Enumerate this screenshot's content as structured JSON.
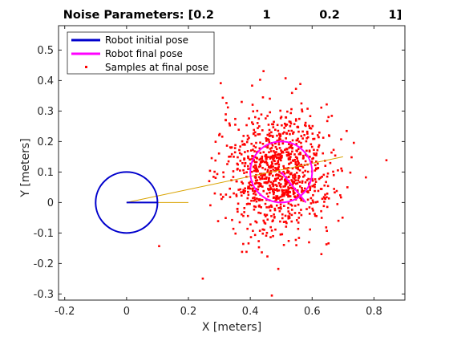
{
  "chart_data": {
    "type": "scatter",
    "title": "Noise Parameters: [0.2            1            0.2            1]",
    "xlabel": "X [meters]",
    "ylabel": "Y [meters]",
    "xlim": [
      -0.22,
      0.9
    ],
    "ylim": [
      -0.32,
      0.58
    ],
    "xticks": [
      -0.2,
      0,
      0.2,
      0.4,
      0.6,
      0.8
    ],
    "xtick_labels": [
      "-0.2",
      "0",
      "0.2",
      "0.4",
      "0.6",
      "0.8"
    ],
    "yticks": [
      -0.3,
      -0.2,
      -0.1,
      0,
      0.1,
      0.2,
      0.3,
      0.4,
      0.5
    ],
    "ytick_labels": [
      "-0.3",
      "-0.2",
      "-0.1",
      "0",
      "0.1",
      "0.2",
      "0.3",
      "0.4",
      "0.5"
    ],
    "grid": false,
    "legend_position": "top-left",
    "legend": [
      {
        "label": "Robot initial pose",
        "color": "#0000cc",
        "style": "line"
      },
      {
        "label": "Robot final pose",
        "color": "#ff00ff",
        "style": "line"
      },
      {
        "label": "Samples at final pose",
        "color": "#ff0000",
        "style": "marker"
      }
    ],
    "initial_pose": {
      "x": 0,
      "y": 0,
      "radius": 0.1,
      "heading_x": 0.1,
      "heading_y": 0,
      "color": "#0000cc"
    },
    "final_pose": {
      "x": 0.5,
      "y": 0.1,
      "radius": 0.1,
      "heading_x": 0.58,
      "heading_y": 0.0,
      "color": "#ff00ff"
    },
    "trajectory_lines": [
      {
        "from": [
          0,
          0
        ],
        "to": [
          0.7,
          0.15
        ],
        "color": "#d9a300"
      },
      {
        "from": [
          0,
          0
        ],
        "to": [
          0.2,
          0.0
        ],
        "color": "#d9a300"
      }
    ],
    "samples": {
      "color": "#ff0000",
      "count": 1000,
      "center": [
        0.49,
        0.1
      ],
      "std": [
        0.09,
        0.1
      ],
      "seed": 7
    }
  }
}
